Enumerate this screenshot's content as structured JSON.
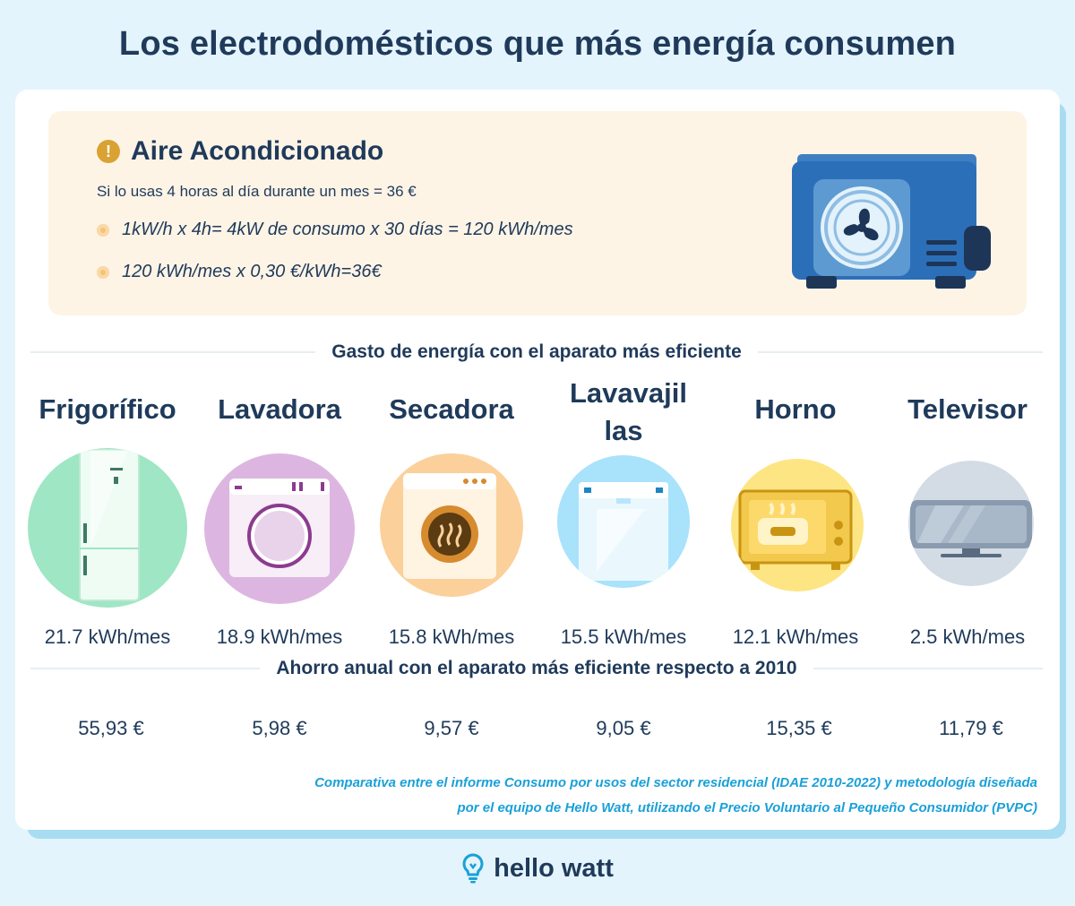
{
  "title": "Los electrodomésticos que más energía consumen",
  "ac": {
    "title": "Aire Acondicionado",
    "subtitle": "Si lo usas 4 horas al día durante un mes = 36 €",
    "line1": "1kW/h x 4h= 4kW de consumo x 30 días = 120 kWh/mes",
    "line2": "120 kWh/mes x 0,30 €/kWh=36€"
  },
  "section1": "Gasto de energía con el aparato más eficiente",
  "section2": "Ahorro anual con el aparato más eficiente respecto a 2010",
  "appliances": [
    {
      "name": "Frigorífico",
      "kwh": "21.7 kWh/mes",
      "saving": "55,93 €",
      "color": "#9ee6c4"
    },
    {
      "name": "Lavadora",
      "kwh": "18.9 kWh/mes",
      "saving": "5,98 €",
      "color": "#dcb6e0"
    },
    {
      "name": "Secadora",
      "kwh": "15.8 kWh/mes",
      "saving": "9,57 €",
      "color": "#fbd09a"
    },
    {
      "name": "Lavavajil las",
      "kwh": "15.5 kWh/mes",
      "saving": "9,05 €",
      "color": "#a9e2fb"
    },
    {
      "name": "Horno",
      "kwh": "12.1 kWh/mes",
      "saving": "15,35 €",
      "color": "#fde584"
    },
    {
      "name": "Televisor",
      "kwh": "2.5 kWh/mes",
      "saving": "11,79 €",
      "color": "#d3dce5"
    }
  ],
  "note": {
    "line1": "Comparativa entre el informe Consumo por usos del sector residencial (IDAE 2010-2022) y metodología diseñada",
    "line2": "por el equipo de Hello Watt, utilizando el Precio Voluntario al Pequeño Consumidor (PVPC)"
  },
  "brand": "hello watt"
}
